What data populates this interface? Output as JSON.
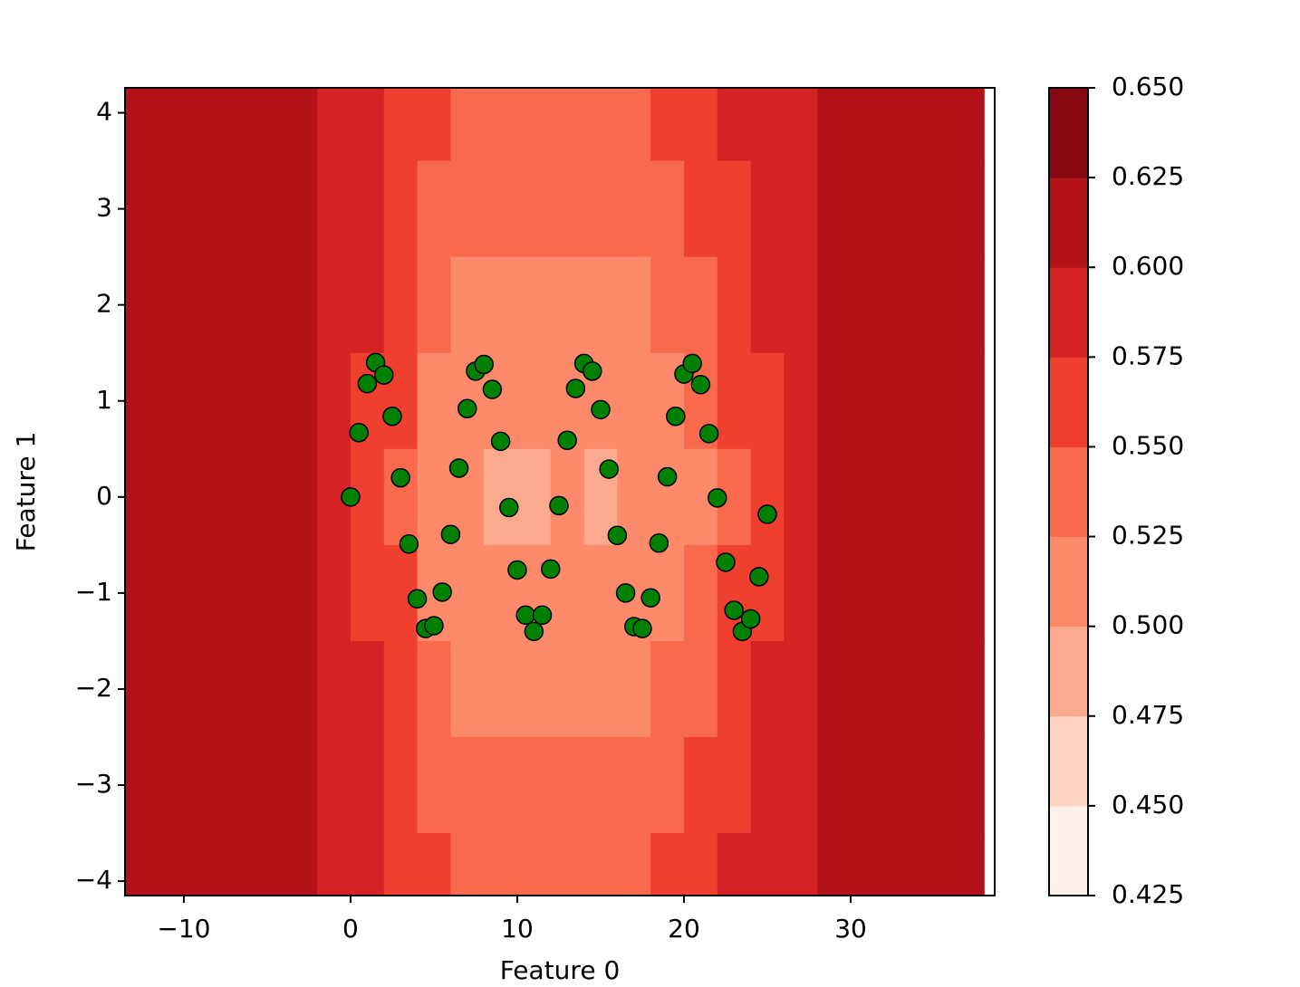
{
  "chart_data": {
    "type": "contour-scatter",
    "xlabel": "Feature 0",
    "ylabel": "Feature 1",
    "xlim": [
      -13.53,
      38.64
    ],
    "ylim": [
      -4.15,
      4.26
    ],
    "xticks": [
      {
        "value": -10,
        "label": "−10"
      },
      0,
      10,
      20,
      30
    ],
    "yticks": [
      {
        "value": -4,
        "label": "−4"
      },
      {
        "value": -3,
        "label": "−3"
      },
      {
        "value": -2,
        "label": "−2"
      },
      {
        "value": -1,
        "label": "−1"
      },
      0,
      1,
      2,
      3,
      4
    ],
    "levels": [
      0.425,
      {
        "value": 0.45,
        "label": "0.450"
      },
      0.475,
      {
        "value": 0.5,
        "label": "0.500"
      },
      0.525,
      {
        "value": 0.55,
        "label": "0.550"
      },
      0.575,
      {
        "value": 0.6,
        "label": "0.600"
      },
      0.625,
      {
        "value": 0.65,
        "label": "0.650"
      }
    ],
    "level_colors": [
      "#fff0e8",
      "#fdd4c2",
      "#fcaa8e",
      "#fc8a6b",
      "#f96a4d",
      "#ee3f2f",
      "#d42322",
      "#b21218",
      "#860811"
    ],
    "contour": {
      "x": [
        -13,
        -11,
        -9,
        -7,
        -5,
        -3,
        -1,
        1,
        3,
        5,
        7,
        9,
        11,
        13,
        15,
        17,
        19,
        21,
        23,
        25,
        27,
        29,
        31,
        33,
        35,
        37
      ],
      "y": [
        4,
        3,
        2,
        1,
        0,
        -1,
        -2,
        -3,
        -4
      ],
      "z": [
        [
          0.61,
          0.61,
          0.61,
          0.61,
          0.61,
          0.61,
          0.598,
          0.586,
          0.569,
          0.558,
          0.548,
          0.538,
          0.538,
          0.548,
          0.538,
          0.548,
          0.558,
          0.568,
          0.577,
          0.585,
          0.593,
          0.604,
          0.61,
          0.61,
          0.61,
          0.61
        ],
        [
          0.61,
          0.61,
          0.61,
          0.61,
          0.61,
          0.61,
          0.596,
          0.582,
          0.563,
          0.546,
          0.536,
          0.526,
          0.526,
          0.536,
          0.526,
          0.536,
          0.546,
          0.556,
          0.569,
          0.58,
          0.591,
          0.603,
          0.61,
          0.61,
          0.61,
          0.61
        ],
        [
          0.61,
          0.61,
          0.61,
          0.61,
          0.61,
          0.61,
          0.594,
          0.578,
          0.557,
          0.534,
          0.524,
          0.514,
          0.514,
          0.524,
          0.514,
          0.524,
          0.534,
          0.544,
          0.561,
          0.575,
          0.589,
          0.602,
          0.61,
          0.61,
          0.61,
          0.61
        ],
        [
          0.61,
          0.61,
          0.61,
          0.61,
          0.61,
          0.61,
          0.592,
          0.574,
          0.551,
          0.522,
          0.512,
          0.502,
          0.502,
          0.512,
          0.502,
          0.512,
          0.522,
          0.532,
          0.553,
          0.57,
          0.587,
          0.601,
          0.61,
          0.61,
          0.61,
          0.61
        ],
        [
          0.61,
          0.61,
          0.61,
          0.61,
          0.61,
          0.61,
          0.59,
          0.57,
          0.545,
          0.51,
          0.5,
          0.49,
          0.49,
          0.5,
          0.49,
          0.5,
          0.51,
          0.52,
          0.545,
          0.565,
          0.585,
          0.6,
          0.61,
          0.61,
          0.61,
          0.61
        ],
        [
          0.61,
          0.61,
          0.61,
          0.61,
          0.61,
          0.61,
          0.592,
          0.574,
          0.551,
          0.522,
          0.512,
          0.502,
          0.502,
          0.512,
          0.502,
          0.512,
          0.522,
          0.532,
          0.553,
          0.57,
          0.587,
          0.601,
          0.61,
          0.61,
          0.61,
          0.61
        ],
        [
          0.61,
          0.61,
          0.61,
          0.61,
          0.61,
          0.61,
          0.594,
          0.578,
          0.557,
          0.534,
          0.524,
          0.514,
          0.514,
          0.524,
          0.514,
          0.524,
          0.534,
          0.544,
          0.561,
          0.575,
          0.589,
          0.602,
          0.61,
          0.61,
          0.61,
          0.61
        ],
        [
          0.61,
          0.61,
          0.61,
          0.61,
          0.61,
          0.61,
          0.596,
          0.582,
          0.563,
          0.546,
          0.536,
          0.526,
          0.526,
          0.536,
          0.526,
          0.536,
          0.546,
          0.556,
          0.569,
          0.58,
          0.591,
          0.603,
          0.61,
          0.61,
          0.61,
          0.61
        ],
        [
          0.61,
          0.61,
          0.61,
          0.61,
          0.61,
          0.61,
          0.598,
          0.586,
          0.569,
          0.558,
          0.548,
          0.538,
          0.538,
          0.548,
          0.538,
          0.548,
          0.558,
          0.568,
          0.577,
          0.585,
          0.593,
          0.604,
          0.61,
          0.61,
          0.61,
          0.61
        ]
      ]
    },
    "series": [
      {
        "color": "#008000",
        "edgecolor": "#000000",
        "x": [
          0,
          0.5,
          1,
          1.5,
          2,
          2.5,
          3,
          3.5,
          4,
          4.5,
          5,
          5.5,
          6,
          6.5,
          7,
          7.5,
          8,
          8.5,
          9,
          9.5,
          10,
          10.5,
          11,
          11.5,
          12,
          12.5,
          13,
          13.5,
          14,
          14.5,
          15,
          15.5,
          16,
          16.5,
          17,
          17.5,
          18,
          18.5,
          19,
          19.5,
          20,
          20.5,
          21,
          21.5,
          22,
          22.5,
          23,
          23.5,
          24,
          24.5,
          25
        ],
        "y": [
          0.0,
          0.67,
          1.18,
          1.4,
          1.27,
          0.84,
          0.2,
          -0.49,
          -1.06,
          -1.37,
          -1.34,
          -0.99,
          -0.39,
          0.3,
          0.92,
          1.31,
          1.38,
          1.12,
          0.58,
          -0.11,
          -0.76,
          -1.23,
          -1.4,
          -1.23,
          -0.75,
          -0.09,
          0.59,
          1.13,
          1.39,
          1.31,
          0.91,
          0.29,
          -0.4,
          -1.0,
          -1.35,
          -1.37,
          -1.05,
          -0.48,
          0.21,
          0.84,
          1.28,
          1.39,
          1.17,
          0.66,
          -0.01,
          -0.68,
          -1.18,
          -1.4,
          -1.27,
          -0.83,
          -0.18
        ]
      }
    ]
  }
}
